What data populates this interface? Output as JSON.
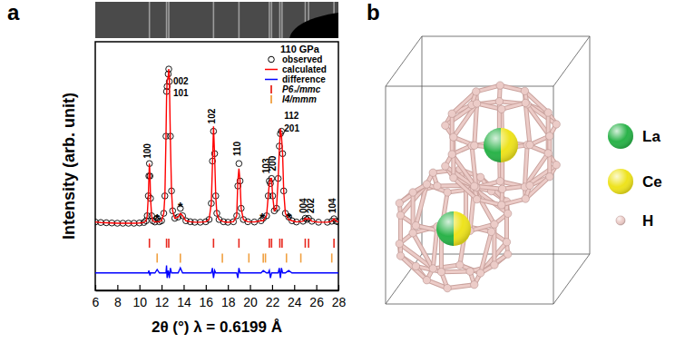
{
  "chart_data": {
    "type": "line",
    "panel_labels": [
      "a",
      "b"
    ],
    "legend_title": "110 GPa",
    "x_label": "2θ (°) λ = 0.6199 Å",
    "y_label": "Intensity (arb. unit)",
    "xlim": [
      6,
      28
    ],
    "ylim": [
      0,
      100
    ],
    "xticks": [
      6,
      8,
      10,
      12,
      14,
      16,
      18,
      20,
      22,
      24,
      26,
      28
    ],
    "tick_labels": "x",
    "legend": "upper right",
    "x": [
      6.0,
      6.5,
      7.0,
      7.5,
      8.0,
      8.5,
      9.0,
      9.5,
      10.0,
      10.4,
      10.6,
      10.7,
      10.8,
      10.85,
      10.9,
      10.95,
      11.0,
      11.1,
      11.2,
      11.4,
      11.6,
      11.8,
      12.0,
      12.2,
      12.3,
      12.4,
      12.45,
      12.5,
      12.6,
      12.65,
      12.7,
      12.8,
      12.9,
      13.0,
      13.2,
      13.5,
      13.7,
      13.9,
      14.2,
      14.6,
      15.0,
      15.5,
      16.0,
      16.3,
      16.5,
      16.6,
      16.7,
      16.8,
      16.9,
      17.0,
      17.2,
      17.6,
      18.0,
      18.5,
      18.8,
      18.9,
      19.0,
      19.1,
      19.2,
      19.4,
      19.8,
      20.4,
      21.0,
      21.2,
      21.5,
      21.65,
      21.75,
      21.85,
      21.95,
      22.05,
      22.2,
      22.4,
      22.55,
      22.65,
      22.75,
      22.85,
      22.95,
      23.05,
      23.2,
      23.5,
      23.8,
      24.2,
      24.8,
      25.0,
      25.15,
      25.3,
      25.6,
      26.2,
      27.0,
      27.4,
      27.6,
      27.8,
      28.0
    ],
    "series": [
      {
        "name": "observed",
        "type": "scatter",
        "marker": "circle",
        "color": "#000000",
        "values": [
          27.5,
          27.3,
          27.2,
          27.1,
          27.0,
          27.0,
          27.0,
          27.0,
          27.1,
          27.3,
          28.0,
          30,
          38,
          46,
          51,
          46,
          37,
          30,
          28,
          27.5,
          29,
          27.6,
          28,
          31,
          38,
          62,
          80,
          82,
          87,
          89,
          84,
          62,
          40,
          32,
          29,
          29.5,
          33,
          30,
          28,
          27.6,
          27.4,
          27.4,
          27.6,
          28.5,
          35,
          52,
          64,
          55,
          38,
          31,
          28.5,
          27.6,
          27.4,
          27.6,
          30,
          42,
          51,
          44,
          33,
          28.5,
          27.6,
          27.5,
          28,
          29,
          30,
          38,
          44,
          43,
          45,
          38,
          32,
          33,
          45,
          58,
          63,
          64,
          55,
          40,
          31,
          29.5,
          28,
          27.5,
          27.8,
          29,
          28.5,
          29,
          27.8,
          27.4,
          27.4,
          27.8,
          28.8,
          27.8,
          27.5
        ]
      },
      {
        "name": "calculated",
        "type": "line",
        "line_style": "solid",
        "color": "#ff0000",
        "values": [
          27.5,
          27.3,
          27.2,
          27.1,
          27.0,
          27.0,
          27.0,
          27.0,
          27.1,
          27.3,
          28.0,
          30,
          38,
          45,
          51,
          47,
          37,
          30,
          28,
          27.5,
          27.6,
          27.6,
          28,
          31,
          38,
          62,
          77,
          84,
          86,
          89,
          86,
          60,
          40,
          32,
          29,
          29.5,
          31,
          30,
          28,
          27.6,
          27.4,
          27.4,
          27.6,
          28.5,
          35,
          50,
          66,
          54,
          38,
          31,
          28.5,
          27.6,
          27.4,
          27.6,
          30,
          44,
          49,
          44,
          33,
          28.5,
          27.6,
          27.5,
          28,
          28,
          30,
          38,
          43,
          45,
          45,
          38,
          32,
          33,
          45,
          56,
          65,
          62,
          55,
          40,
          31,
          28.5,
          28,
          27.5,
          27.8,
          29,
          28.5,
          29,
          27.8,
          27.4,
          27.4,
          27.8,
          28.8,
          27.8,
          27.5
        ]
      },
      {
        "name": "difference",
        "type": "line",
        "line_style": "solid",
        "color": "#0000ff",
        "values": [
          7,
          7,
          7,
          7,
          7,
          7,
          7,
          7,
          7,
          7,
          7,
          7,
          7,
          8,
          7,
          6,
          7,
          7,
          7,
          7,
          8.4,
          7,
          7,
          7,
          7,
          7,
          10,
          5,
          8,
          7,
          5,
          9,
          7,
          7,
          7,
          7,
          9,
          7,
          7,
          7,
          7,
          7,
          7,
          7,
          7,
          9,
          5,
          8,
          7,
          7,
          7,
          7,
          7,
          7,
          7,
          5,
          9,
          7,
          7,
          7,
          7,
          7,
          7,
          8,
          7,
          7,
          8,
          5,
          7,
          7,
          7,
          7,
          7,
          9,
          5,
          9,
          7,
          7,
          7,
          8,
          7,
          7,
          7,
          7,
          7,
          7,
          7,
          7,
          7,
          7,
          7,
          7,
          7
        ]
      }
    ],
    "reflections": [
      {
        "name": "P6₃/mmc",
        "color": "#e8281e",
        "y": 19,
        "x": [
          10.9,
          12.45,
          12.65,
          16.7,
          19.0,
          21.75,
          21.95,
          22.7,
          22.9,
          25.0,
          25.3,
          27.6
        ]
      },
      {
        "name": "I4/mmm",
        "color": "#f0a040",
        "y": 13,
        "x": [
          11.6,
          13.7,
          17.5,
          19.9,
          21.2,
          21.4,
          23.3,
          24.6,
          27.4
        ]
      }
    ],
    "annotations": [
      {
        "text": "100",
        "x": 10.75,
        "y": 53
      },
      {
        "text": "002",
        "x": 13.05,
        "y": 83
      },
      {
        "text": "101",
        "x": 13.05,
        "y": 78
      },
      {
        "text": "102",
        "x": 16.55,
        "y": 67
      },
      {
        "text": "110",
        "x": 18.85,
        "y": 54
      },
      {
        "text": "103",
        "x": 21.45,
        "y": 47
      },
      {
        "text": "200",
        "x": 22.05,
        "y": 48
      },
      {
        "text": "112",
        "x": 23.1,
        "y": 69
      },
      {
        "text": "201",
        "x": 23.1,
        "y": 64
      },
      {
        "text": "004",
        "x": 24.8,
        "y": 31
      },
      {
        "text": "202",
        "x": 25.5,
        "y": 31
      },
      {
        "text": "104",
        "x": 27.5,
        "y": 31
      },
      {
        "text": "*",
        "x": 11.6,
        "y": 30
      },
      {
        "text": "*",
        "x": 13.7,
        "y": 35
      },
      {
        "text": "*",
        "x": 21.1,
        "y": 30.5
      },
      {
        "text": "*",
        "x": 23.55,
        "y": 30.5
      }
    ],
    "structure": {
      "atoms": [
        {
          "label": "La",
          "color": "#2bb34a"
        },
        {
          "label": "Ce",
          "color": "#eee31e"
        },
        {
          "label": "H",
          "color": "#ecccc8"
        }
      ]
    }
  }
}
